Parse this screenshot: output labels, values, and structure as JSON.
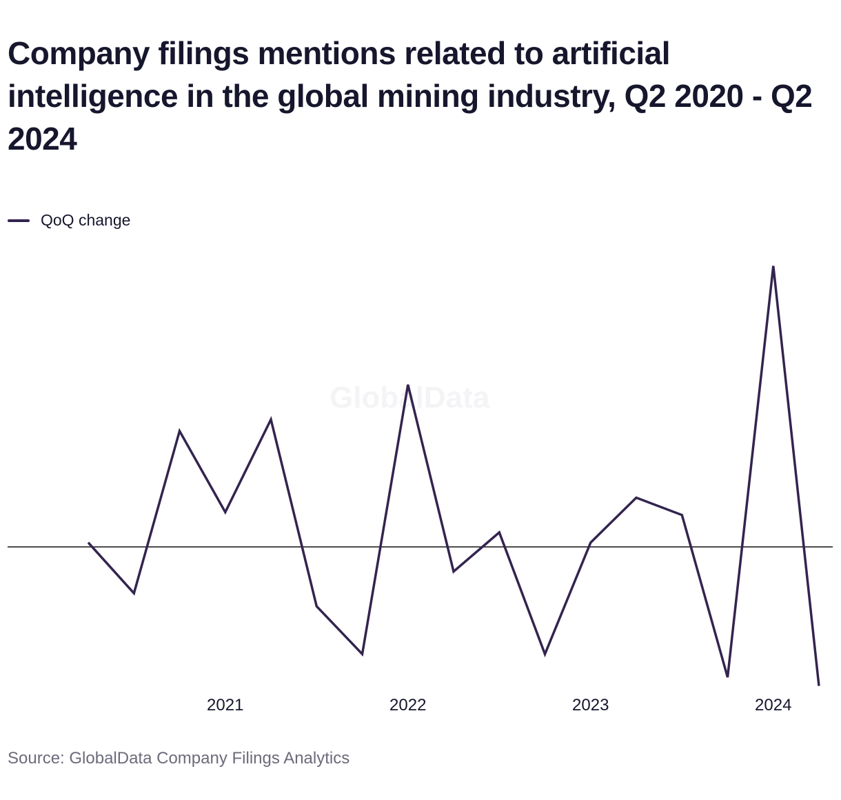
{
  "title": "Company filings mentions related to artificial intelligence in the global mining industry, Q2 2020 - Q2 2024",
  "watermark": "GlobalData",
  "source": "Source: GlobalData Company Filings Analytics",
  "colors": {
    "series": "#33244f",
    "zero_line": "#111111",
    "text": "#16162d",
    "source": "#6b6b7b"
  },
  "chart_data": {
    "type": "line",
    "title": "Company filings mentions related to artificial intelligence in the global mining industry, Q2 2020 - Q2 2024",
    "xlabel": "",
    "ylabel": "",
    "grid": false,
    "legend_placement": "top-left",
    "x": [
      "Q2 2020",
      "Q3 2020",
      "Q4 2020",
      "Q1 2021",
      "Q2 2021",
      "Q3 2021",
      "Q4 2021",
      "Q1 2022",
      "Q2 2022",
      "Q3 2022",
      "Q4 2022",
      "Q1 2023",
      "Q2 2023",
      "Q3 2023",
      "Q4 2023",
      "Q1 2024",
      "Q2 2024"
    ],
    "x_tick_labels": [
      {
        "label": "2021",
        "at": "Q1 2021"
      },
      {
        "label": "2022",
        "at": "Q1 2022"
      },
      {
        "label": "2023",
        "at": "Q1 2023"
      },
      {
        "label": "2024",
        "at": "Q1 2024"
      }
    ],
    "ylim": [
      -45,
      95
    ],
    "series": [
      {
        "name": "QoQ change",
        "values": [
          1.5,
          -16,
          40,
          12,
          44,
          -20.5,
          -37,
          56,
          -8.5,
          5,
          -37,
          1.5,
          17,
          11,
          -45,
          97,
          -48
        ]
      }
    ]
  }
}
